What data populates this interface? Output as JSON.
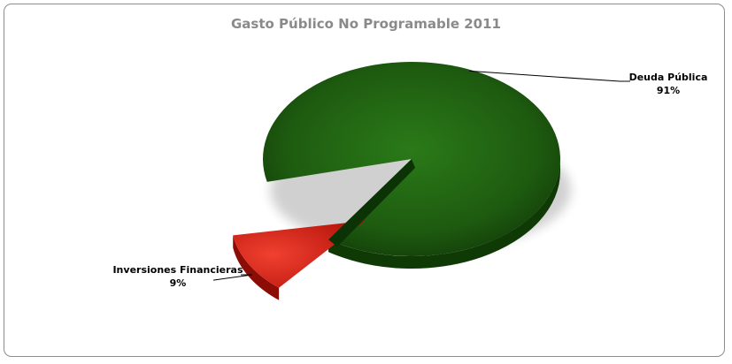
{
  "chart_data": {
    "type": "pie",
    "title": "Gasto Público No Programable 2011",
    "slices": [
      {
        "label": "Deuda Pública",
        "value": 91,
        "value_label": "91%",
        "color": "#1e5b10"
      },
      {
        "label": "Inversiones Financieras",
        "value": 9,
        "value_label": "9%",
        "color": "#d81e14"
      }
    ],
    "exploded": "Inversiones Financieras",
    "style": "3d",
    "legend": "none"
  }
}
